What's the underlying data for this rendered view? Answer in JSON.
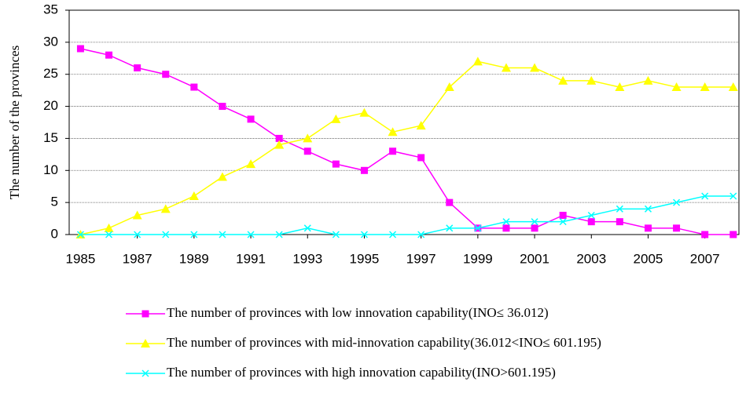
{
  "chart_data": {
    "type": "line",
    "y_label": "The number of the provinces",
    "x": [
      1985,
      1986,
      1987,
      1988,
      1989,
      1990,
      1991,
      1992,
      1993,
      1994,
      1995,
      1996,
      1997,
      1998,
      1999,
      2000,
      2001,
      2002,
      2003,
      2004,
      2005,
      2006,
      2007,
      2008
    ],
    "xlim": [
      1984.6,
      2008.2
    ],
    "xticks": [
      1985,
      1987,
      1989,
      1991,
      1993,
      1995,
      1997,
      1999,
      2001,
      2003,
      2005,
      2007
    ],
    "ylim": [
      0,
      35
    ],
    "yticks": [
      0,
      5,
      10,
      15,
      20,
      25,
      30,
      35
    ],
    "grid": true,
    "legend": "bottom",
    "series": [
      {
        "name": "The number of provinces with low innovation capability(INO≤ 36.012)",
        "color": "#ff00ff",
        "marker": "square",
        "values": [
          29,
          28,
          26,
          25,
          23,
          20,
          18,
          15,
          13,
          11,
          10,
          13,
          12,
          5,
          1,
          1,
          1,
          3,
          2,
          2,
          1,
          1,
          0,
          0
        ]
      },
      {
        "name": "The number of provinces with mid-innovation capability(36.012<INO≤ 601.195)",
        "color": "#ffff00",
        "marker": "triangle",
        "values": [
          0,
          1,
          3,
          4,
          6,
          9,
          11,
          14,
          15,
          18,
          19,
          16,
          17,
          23,
          27,
          26,
          26,
          24,
          24,
          23,
          24,
          23,
          23,
          23
        ]
      },
      {
        "name": "The number of provinces with high innovation capability(INO>601.195)",
        "color": "#00ffff",
        "marker": "x",
        "values": [
          0,
          0,
          0,
          0,
          0,
          0,
          0,
          0,
          1,
          0,
          0,
          0,
          0,
          1,
          1,
          2,
          2,
          2,
          3,
          4,
          4,
          5,
          6,
          6
        ]
      }
    ]
  }
}
